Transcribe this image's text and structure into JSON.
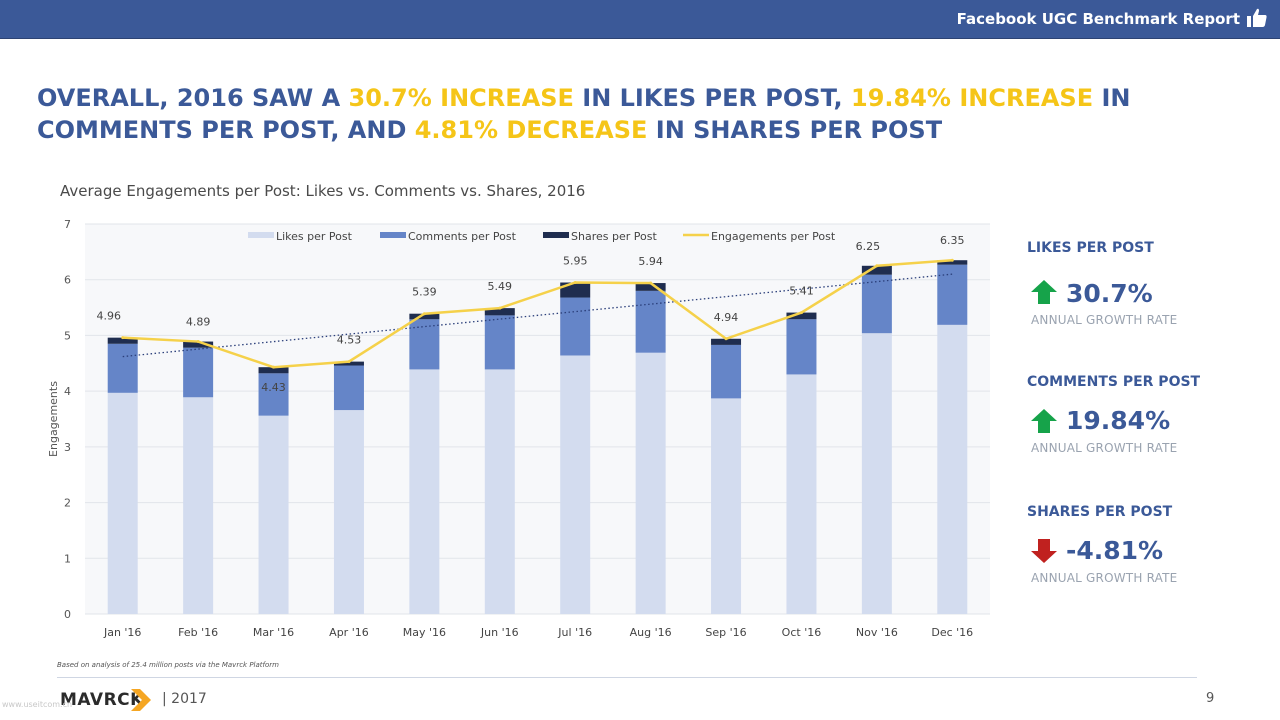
{
  "header": {
    "report_title": "Facebook UGC Benchmark Report",
    "icon": "thumbs-up-icon"
  },
  "headline": {
    "p1": "OVERALL, 2016 SAW A ",
    "h1": "30.7% INCREASE",
    "p2": " IN LIKES PER POST, ",
    "h2": "19.84% INCREASE",
    "p3": " IN COMMENTS PER POST, AND ",
    "h3": "4.81% DECREASE",
    "p4": " IN SHARES PER POST"
  },
  "chart_data": {
    "type": "bar",
    "stacked": true,
    "title": "Average Engagements per Post: Likes vs. Comments vs. Shares, 2016",
    "ylabel": "Engagements",
    "xlabel": "",
    "ylim": [
      0,
      7
    ],
    "yticks": [
      "0",
      "1",
      "2",
      "3",
      "4",
      "5",
      "6",
      "7"
    ],
    "grid": true,
    "legend_position": "top",
    "categories": [
      "Jan '16",
      "Feb '16",
      "Mar '16",
      "Apr '16",
      "May '16",
      "Jun '16",
      "Jul '16",
      "Aug '16",
      "Sep '16",
      "Oct '16",
      "Nov '16",
      "Dec '16"
    ],
    "series": [
      {
        "name": "Likes per Post",
        "type": "bar",
        "color": "#d3dcef",
        "values": [
          3.97,
          3.89,
          3.56,
          3.66,
          4.39,
          4.39,
          4.64,
          4.69,
          3.87,
          4.3,
          5.04,
          5.19
        ]
      },
      {
        "name": "Comments per Post",
        "type": "bar",
        "color": "#6585c8",
        "values": [
          0.88,
          0.89,
          0.76,
          0.8,
          0.9,
          0.97,
          1.04,
          1.11,
          0.96,
          0.99,
          1.05,
          1.08
        ]
      },
      {
        "name": "Shares per Post",
        "type": "bar",
        "color": "#1f2d4f",
        "values": [
          0.11,
          0.11,
          0.11,
          0.07,
          0.1,
          0.13,
          0.27,
          0.14,
          0.11,
          0.12,
          0.16,
          0.08
        ]
      },
      {
        "name": "Engagements per Post",
        "type": "line",
        "color": "#f5d14a",
        "values": [
          4.96,
          4.89,
          4.43,
          4.53,
          5.39,
          5.49,
          5.95,
          5.94,
          4.94,
          5.41,
          6.25,
          6.35
        ],
        "labels": [
          "4.96",
          "4.89",
          "4.43",
          "4.53",
          "5.39",
          "5.49",
          "5.95",
          "5.94",
          "4.94",
          "5.41",
          "6.25",
          "6.35"
        ]
      }
    ],
    "trendline": {
      "style": "dotted",
      "color": "#2b3f7a",
      "start": 4.62,
      "end": 6.1
    }
  },
  "panel": [
    {
      "title": "LIKES PER POST",
      "value": "30.7%",
      "direction": "up",
      "arrow_icon": "arrow-up-icon",
      "sub": "ANNUAL GROWTH RATE",
      "color": "#16a34a"
    },
    {
      "title": "COMMENTS PER POST",
      "value": "19.84%",
      "direction": "up",
      "arrow_icon": "arrow-up-icon",
      "sub": "ANNUAL GROWTH RATE",
      "color": "#16a34a"
    },
    {
      "title": "SHARES  PER POST",
      "value": "-4.81%",
      "direction": "down",
      "arrow_icon": "arrow-down-icon",
      "sub": "ANNUAL GROWTH RATE",
      "color": "#c0211f"
    }
  ],
  "footer": {
    "note": "Based on analysis of 25.4 million posts via the Mavrck Platform",
    "logo": "MAVRCK",
    "year": "|  2017",
    "page": "9",
    "watermark": "www.useitcom.cn"
  },
  "colors": {
    "brand": "#3b5998",
    "accent": "#f5c518"
  }
}
